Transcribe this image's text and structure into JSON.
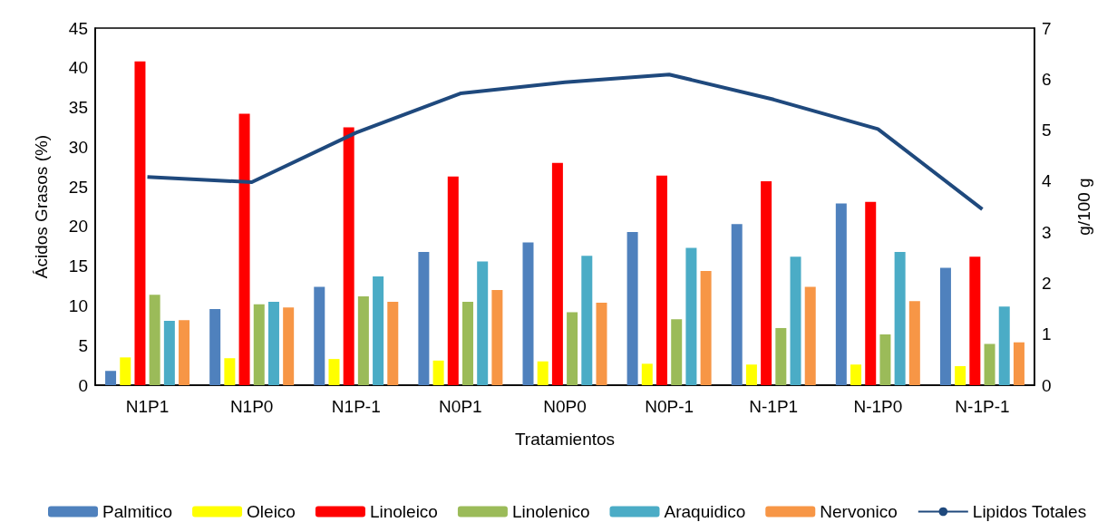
{
  "chart_data": {
    "type": "bar",
    "xlabel": "Tratamientos",
    "ylabel": "Ácidos Grasos (%)",
    "y2label": "g/100 g",
    "categories": [
      "N1P1",
      "N1P0",
      "N1P-1",
      "N0P1",
      "N0P0",
      "N0P-1",
      "N-1P1",
      "N-1P0",
      "N-1P-1"
    ],
    "series": [
      {
        "name": "Palmitico",
        "color": "#4f81bd",
        "values": [
          1.8,
          9.6,
          12.4,
          16.8,
          18.0,
          19.3,
          20.3,
          22.9,
          14.8
        ]
      },
      {
        "name": "Oleico",
        "color": "#ffff00",
        "values": [
          3.5,
          3.4,
          3.3,
          3.1,
          3.0,
          2.7,
          2.6,
          2.6,
          2.4
        ]
      },
      {
        "name": "Linoleico",
        "color": "#ff0000",
        "values": [
          40.8,
          34.2,
          32.5,
          26.3,
          28.0,
          26.4,
          25.7,
          23.1,
          16.2
        ]
      },
      {
        "name": "Linolenico",
        "color": "#9bbb59",
        "values": [
          11.4,
          10.2,
          11.2,
          10.5,
          9.2,
          8.3,
          7.2,
          6.4,
          5.2
        ]
      },
      {
        "name": "Araquidico",
        "color": "#4bacc6",
        "values": [
          8.1,
          10.5,
          13.7,
          15.6,
          16.3,
          17.3,
          16.2,
          16.8,
          9.9
        ]
      },
      {
        "name": "Nervonico",
        "color": "#f79646",
        "values": [
          8.2,
          9.8,
          10.5,
          12.0,
          10.4,
          14.4,
          12.4,
          10.6,
          5.4
        ]
      },
      {
        "name": "Lipidos Totales",
        "color": "#1f497d",
        "type": "line",
        "axis": "y2",
        "values": [
          4.08,
          3.98,
          4.95,
          5.72,
          5.94,
          6.09,
          5.6,
          5.02,
          3.45
        ]
      }
    ],
    "ylim": [
      0,
      45
    ],
    "yticks": [
      0,
      5,
      10,
      15,
      20,
      25,
      30,
      35,
      40,
      45
    ],
    "y2lim": [
      0,
      7
    ],
    "y2ticks": [
      0,
      1,
      2,
      3,
      4,
      5,
      6,
      7
    ],
    "grid": false,
    "legend": "bottom",
    "marker": "none"
  }
}
